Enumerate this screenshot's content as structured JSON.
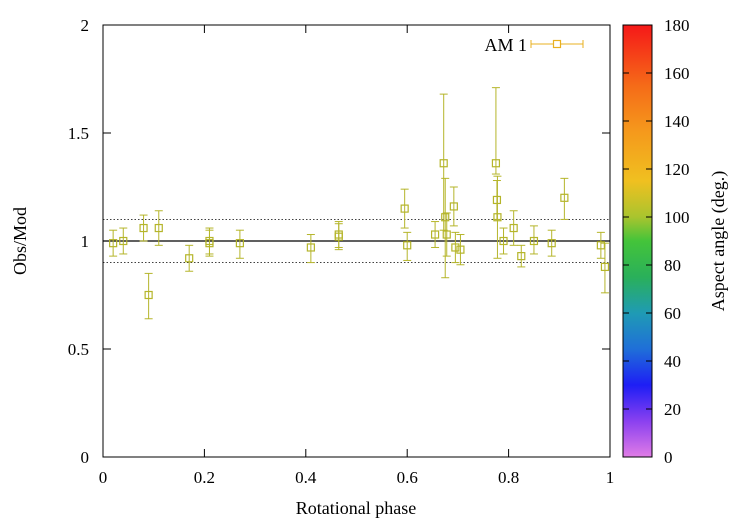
{
  "chart_data": {
    "type": "scatter",
    "xlabel": "Rotational phase",
    "ylabel": "Obs/Mod",
    "xlim": [
      0,
      1
    ],
    "ylim": [
      0,
      2
    ],
    "xticks": [
      {
        "value": 0,
        "label": "0"
      },
      {
        "value": 0.2,
        "label": "0.2"
      },
      {
        "value": 0.4,
        "label": "0.4"
      },
      {
        "value": 0.6,
        "label": "0.6"
      },
      {
        "value": 0.8,
        "label": "0.8"
      },
      {
        "value": 1,
        "label": "1"
      }
    ],
    "yticks": [
      {
        "value": 0,
        "label": "0"
      },
      {
        "value": 0.5,
        "label": "0.5"
      },
      {
        "value": 1,
        "label": "1"
      },
      {
        "value": 1.5,
        "label": "1.5"
      },
      {
        "value": 2,
        "label": "2"
      }
    ],
    "reference_lines": [
      {
        "y": 1.0,
        "style": "solid"
      },
      {
        "y": 1.1,
        "style": "dotted"
      },
      {
        "y": 0.9,
        "style": "dotted"
      }
    ],
    "series": [
      {
        "name": "AM 1",
        "marker": "open-square",
        "color": "#b5b52a",
        "points": [
          {
            "x": 0.02,
            "y": 0.99,
            "lo": 0.93,
            "hi": 1.05
          },
          {
            "x": 0.04,
            "y": 1.0,
            "lo": 0.94,
            "hi": 1.06
          },
          {
            "x": 0.08,
            "y": 1.06,
            "lo": 1.0,
            "hi": 1.12
          },
          {
            "x": 0.09,
            "y": 0.75,
            "lo": 0.64,
            "hi": 0.85
          },
          {
            "x": 0.11,
            "y": 1.06,
            "lo": 0.98,
            "hi": 1.14
          },
          {
            "x": 0.17,
            "y": 0.92,
            "lo": 0.86,
            "hi": 0.98
          },
          {
            "x": 0.21,
            "y": 1.0,
            "lo": 0.94,
            "hi": 1.06
          },
          {
            "x": 0.21,
            "y": 0.99,
            "lo": 0.93,
            "hi": 1.05
          },
          {
            "x": 0.27,
            "y": 0.99,
            "lo": 0.92,
            "hi": 1.05
          },
          {
            "x": 0.41,
            "y": 0.97,
            "lo": 0.9,
            "hi": 1.03
          },
          {
            "x": 0.465,
            "y": 1.03,
            "lo": 0.97,
            "hi": 1.09
          },
          {
            "x": 0.465,
            "y": 1.02,
            "lo": 0.96,
            "hi": 1.08
          },
          {
            "x": 0.595,
            "y": 1.15,
            "lo": 1.06,
            "hi": 1.24
          },
          {
            "x": 0.6,
            "y": 0.98,
            "lo": 0.91,
            "hi": 1.04
          },
          {
            "x": 0.655,
            "y": 1.03,
            "lo": 0.97,
            "hi": 1.09
          },
          {
            "x": 0.672,
            "y": 1.36,
            "lo": 1.05,
            "hi": 1.68
          },
          {
            "x": 0.675,
            "y": 1.11,
            "lo": 0.83,
            "hi": 1.29
          },
          {
            "x": 0.678,
            "y": 1.03,
            "lo": 0.93,
            "hi": 1.13
          },
          {
            "x": 0.692,
            "y": 1.16,
            "lo": 1.07,
            "hi": 1.25
          },
          {
            "x": 0.695,
            "y": 0.97,
            "lo": 0.9,
            "hi": 1.04
          },
          {
            "x": 0.705,
            "y": 0.96,
            "lo": 0.89,
            "hi": 1.03
          },
          {
            "x": 0.775,
            "y": 1.36,
            "lo": 1.31,
            "hi": 1.71
          },
          {
            "x": 0.777,
            "y": 1.19,
            "lo": 1.1,
            "hi": 1.28
          },
          {
            "x": 0.778,
            "y": 1.11,
            "lo": 0.92,
            "hi": 1.3
          },
          {
            "x": 0.79,
            "y": 1.0,
            "lo": 0.94,
            "hi": 1.06
          },
          {
            "x": 0.81,
            "y": 1.06,
            "lo": 0.98,
            "hi": 1.14
          },
          {
            "x": 0.825,
            "y": 0.93,
            "lo": 0.88,
            "hi": 0.98
          },
          {
            "x": 0.85,
            "y": 1.0,
            "lo": 0.94,
            "hi": 1.07
          },
          {
            "x": 0.885,
            "y": 0.99,
            "lo": 0.93,
            "hi": 1.05
          },
          {
            "x": 0.91,
            "y": 1.2,
            "lo": 1.1,
            "hi": 1.29
          },
          {
            "x": 0.982,
            "y": 0.98,
            "lo": 0.92,
            "hi": 1.04
          },
          {
            "x": 0.99,
            "y": 0.88,
            "lo": 0.76,
            "hi": 0.99
          }
        ]
      }
    ],
    "legend": {
      "label": "AM 1",
      "position": "top-right",
      "color": "#e8b020"
    },
    "colorbar": {
      "label": "Aspect angle (deg.)",
      "range": [
        0,
        180
      ],
      "ticks": [
        {
          "value": 0,
          "label": "0"
        },
        {
          "value": 20,
          "label": "20"
        },
        {
          "value": 40,
          "label": "40"
        },
        {
          "value": 60,
          "label": "60"
        },
        {
          "value": 80,
          "label": "80"
        },
        {
          "value": 100,
          "label": "100"
        },
        {
          "value": 120,
          "label": "120"
        },
        {
          "value": 140,
          "label": "140"
        },
        {
          "value": 160,
          "label": "160"
        },
        {
          "value": 180,
          "label": "180"
        }
      ],
      "stops": [
        {
          "value": 0,
          "color": "#e07ce6"
        },
        {
          "value": 15,
          "color": "#8a40f0"
        },
        {
          "value": 30,
          "color": "#1e1ef5"
        },
        {
          "value": 45,
          "color": "#1f6fd8"
        },
        {
          "value": 60,
          "color": "#1f9bb4"
        },
        {
          "value": 75,
          "color": "#2ab05a"
        },
        {
          "value": 90,
          "color": "#44c43a"
        },
        {
          "value": 100,
          "color": "#a9c42e"
        },
        {
          "value": 115,
          "color": "#f0c020"
        },
        {
          "value": 135,
          "color": "#f59a1c"
        },
        {
          "value": 155,
          "color": "#f56a18"
        },
        {
          "value": 180,
          "color": "#f51818"
        }
      ]
    }
  }
}
